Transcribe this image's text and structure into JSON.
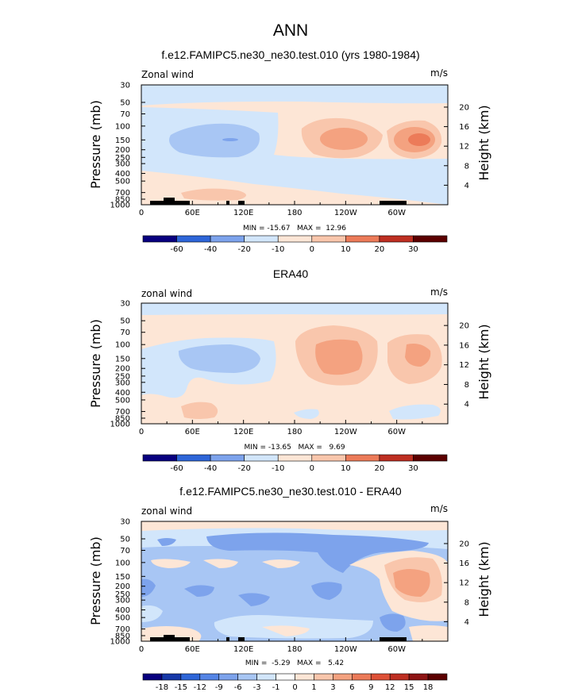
{
  "figure_title": "ANN",
  "colors": {
    "scale": [
      "#08007f",
      "#1638a8",
      "#2e66d8",
      "#5585e6",
      "#7da3ec",
      "#a8c6f4",
      "#d2e6fb",
      "#ffffff",
      "#fde6d6",
      "#f9c6ac",
      "#f4a280",
      "#ec7b59",
      "#de5137",
      "#be2f22",
      "#8e1414",
      "#5c0000"
    ],
    "land": "#000000"
  },
  "chart_data": [
    {
      "type": "contour",
      "title": "f.e12.FAMIPC5.ne30_ne30.test.010 (yrs 1980-1984)",
      "left_label": "Zonal wind",
      "right_label": "m/s",
      "ylabel_left": "Pressure (mb)",
      "ylabel_right": "Height (km)",
      "x_ticks": [
        "0",
        "60E",
        "120E",
        "180",
        "120W",
        "60W"
      ],
      "x_values": [
        0,
        60,
        120,
        180,
        240,
        300
      ],
      "xlim": [
        0,
        360
      ],
      "pressure_ticks": [
        "30",
        "50",
        "70",
        "100",
        "150",
        "200",
        "250",
        "300",
        "400",
        "500",
        "700",
        "850",
        "1000"
      ],
      "pressure_values": [
        30,
        50,
        70,
        100,
        150,
        200,
        250,
        300,
        400,
        500,
        700,
        850,
        1000
      ],
      "height_ticks": [
        "20",
        "16",
        "12",
        "8",
        "4"
      ],
      "height_values": [
        20,
        16,
        12,
        8,
        4
      ],
      "ylim": [
        30,
        1000
      ],
      "stats": "MIN = -15.67   MAX =  12.96",
      "min": -15.67,
      "max": 12.96,
      "colorbar_labels": [
        "-60",
        "-40",
        "-20",
        "-10",
        "0",
        "10",
        "20",
        "30"
      ]
    },
    {
      "type": "contour",
      "title": "ERA40",
      "left_label": "zonal wind",
      "right_label": "m/s",
      "ylabel_left": "Pressure (mb)",
      "ylabel_right": "Height (km)",
      "x_ticks": [
        "0",
        "60E",
        "120E",
        "180",
        "120W",
        "60W"
      ],
      "x_values": [
        0,
        60,
        120,
        180,
        240,
        300
      ],
      "xlim": [
        0,
        360
      ],
      "pressure_ticks": [
        "30",
        "50",
        "70",
        "100",
        "150",
        "200",
        "250",
        "300",
        "400",
        "500",
        "700",
        "850",
        "1000"
      ],
      "pressure_values": [
        30,
        50,
        70,
        100,
        150,
        200,
        250,
        300,
        400,
        500,
        700,
        850,
        1000
      ],
      "height_ticks": [
        "20",
        "16",
        "12",
        "8",
        "4"
      ],
      "height_values": [
        20,
        16,
        12,
        8,
        4
      ],
      "ylim": [
        30,
        1000
      ],
      "stats": "MIN = -13.65   MAX =   9.69",
      "min": -13.65,
      "max": 9.69,
      "colorbar_labels": [
        "-60",
        "-40",
        "-20",
        "-10",
        "0",
        "10",
        "20",
        "30"
      ]
    },
    {
      "type": "contour",
      "title": "f.e12.FAMIPC5.ne30_ne30.test.010 - ERA40",
      "left_label": "zonal wind",
      "right_label": "m/s",
      "ylabel_left": "Pressure (mb)",
      "ylabel_right": "Height (km)",
      "x_ticks": [
        "0",
        "60E",
        "120E",
        "180",
        "120W",
        "60W"
      ],
      "x_values": [
        0,
        60,
        120,
        180,
        240,
        300
      ],
      "xlim": [
        0,
        360
      ],
      "pressure_ticks": [
        "30",
        "50",
        "70",
        "100",
        "150",
        "200",
        "250",
        "300",
        "400",
        "500",
        "700",
        "850",
        "1000"
      ],
      "pressure_values": [
        30,
        50,
        70,
        100,
        150,
        200,
        250,
        300,
        400,
        500,
        700,
        850,
        1000
      ],
      "height_ticks": [
        "20",
        "16",
        "12",
        "8",
        "4"
      ],
      "height_values": [
        20,
        16,
        12,
        8,
        4
      ],
      "ylim": [
        30,
        1000
      ],
      "stats": "MIN =  -5.29   MAX =   5.42",
      "min": -5.29,
      "max": 5.42,
      "colorbar_labels": [
        "-18",
        "-15",
        "-12",
        "-9",
        "-6",
        "-3",
        "-1",
        "0",
        "1",
        "3",
        "6",
        "9",
        "12",
        "15",
        "18"
      ]
    }
  ]
}
